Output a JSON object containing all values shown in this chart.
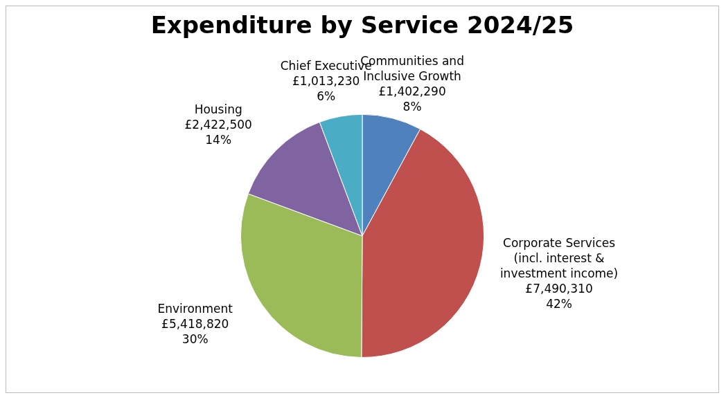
{
  "chart_data": {
    "type": "pie",
    "title": "Expenditure by Service 2024/25",
    "categories": [
      "Communities and Inclusive Growth",
      "Corporate Services (incl. interest & investment income)",
      "Environment",
      "Housing",
      "Chief Executive"
    ],
    "values": [
      1402290,
      7490310,
      5418820,
      2422500,
      1013230
    ],
    "value_labels": [
      "£1,402,290\n8%",
      "£7,490,310\n42%",
      "£5,418,820\n30%",
      "£2,422,500\n14%",
      "£1,013,230\n6%"
    ],
    "colors": [
      "#4f81bd",
      "#c0504d",
      "#9bbb59",
      "#8064a2",
      "#4bacc6"
    ],
    "legend": false
  }
}
